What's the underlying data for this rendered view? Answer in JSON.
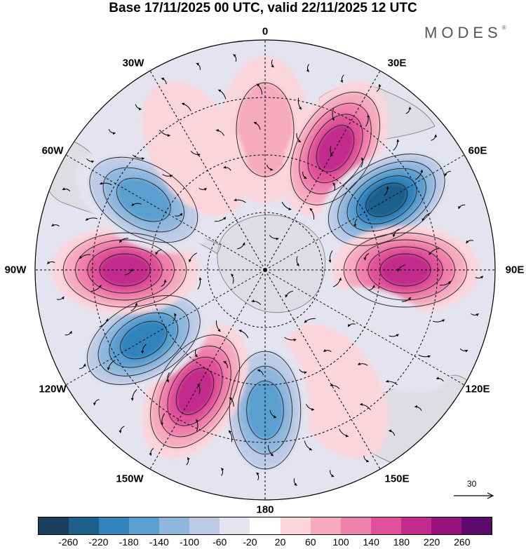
{
  "title": "Base 17/11/2025 00 UTC, valid 22/11/2025 12 UTC",
  "brand": "MODES",
  "brand_mark": "®",
  "longitude_labels": {
    "top": "0",
    "top_right": "30E",
    "upper_right": "60E",
    "right": "90E",
    "lower_right": "120E",
    "bottom_right": "150E",
    "bottom": "180",
    "bottom_left": "150W",
    "lower_left": "120W",
    "left": "90W",
    "upper_left": "60W",
    "top_left": "30W"
  },
  "vector_scale_label": "30",
  "colorbar": {
    "colors": [
      "#1a3f5c",
      "#1f5f8b",
      "#3182bd",
      "#5a9fcf",
      "#8fb7dd",
      "#bccbe6",
      "#e4e3f0",
      "#ffffff",
      "#fbd5dc",
      "#f6aac0",
      "#ef7fab",
      "#e0519a",
      "#c22a8c",
      "#98127e",
      "#5b0a6b"
    ],
    "tick_labels": [
      "-260",
      "-220",
      "-180",
      "-140",
      "-100",
      "-60",
      "-20",
      "20",
      "60",
      "100",
      "140",
      "180",
      "220",
      "260"
    ]
  },
  "anomalies": [
    {
      "label": "0",
      "value": 60
    },
    {
      "label": "30E",
      "value": 200
    },
    {
      "label": "60E",
      "value": -240
    },
    {
      "label": "90E",
      "value": 180
    },
    {
      "label": "120E",
      "value": -40
    },
    {
      "label": "150E",
      "value": 40
    },
    {
      "label": "180",
      "value": -140
    },
    {
      "label": "150W",
      "value": 180
    },
    {
      "label": "120W",
      "value": -180
    },
    {
      "label": "90W",
      "value": 180
    },
    {
      "label": "60W",
      "value": -160
    },
    {
      "label": "30W",
      "value": 40
    }
  ]
}
